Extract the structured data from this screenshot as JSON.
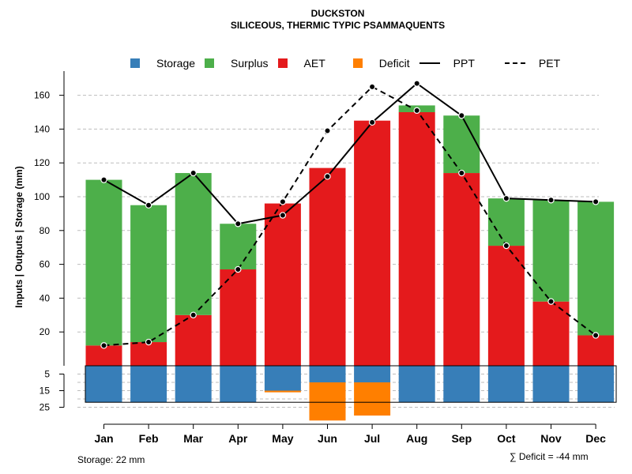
{
  "title": "DUCKSTON",
  "subtitle": "SILICEOUS, THERMIC TYPIC PSAMMAQUENTS",
  "legend": [
    {
      "label": "Storage",
      "type": "box",
      "color": "#377EB8"
    },
    {
      "label": "Surplus",
      "type": "box",
      "color": "#4DAF4A"
    },
    {
      "label": "AET",
      "type": "box",
      "color": "#E41A1C"
    },
    {
      "label": "Deficit",
      "type": "box",
      "color": "#FF7F00"
    },
    {
      "label": "PPT",
      "type": "solid-line",
      "color": "#000000"
    },
    {
      "label": "PET",
      "type": "dashed-line",
      "color": "#000000"
    }
  ],
  "storage_note": "Storage: 22 mm",
  "deficit_note": "∑ Deficit = -44 mm",
  "chart_data": {
    "type": "bar",
    "title": "DUCKSTON",
    "subtitle": "SILICEOUS, THERMIC TYPIC PSAMMAQUENTS",
    "ylabel": "Inputs | Outputs | Storage    (mm)",
    "xlabel": "",
    "categories": [
      "Jan",
      "Feb",
      "Mar",
      "Apr",
      "May",
      "Jun",
      "Jul",
      "Aug",
      "Sep",
      "Oct",
      "Nov",
      "Dec"
    ],
    "ylim_upper": [
      0,
      170
    ],
    "yticks_upper": [
      20,
      40,
      60,
      80,
      100,
      120,
      140,
      160
    ],
    "ylim_lower": [
      0,
      25
    ],
    "yticks_lower": [
      5,
      15,
      25
    ],
    "grid": true,
    "storage_capacity": 22,
    "series": [
      {
        "name": "AET",
        "kind": "bar",
        "color": "#E41A1C",
        "values": [
          12,
          14,
          30,
          57,
          96,
          117,
          145,
          150,
          114,
          71,
          38,
          18
        ]
      },
      {
        "name": "Surplus",
        "kind": "bar",
        "color": "#4DAF4A",
        "values": [
          98,
          81,
          84,
          27,
          0,
          0,
          0,
          4,
          34,
          28,
          60,
          79
        ]
      },
      {
        "name": "Storage",
        "kind": "bar-lower",
        "color": "#377EB8",
        "values": [
          22,
          22,
          22,
          22,
          15,
          10,
          10,
          22,
          22,
          22,
          22,
          22
        ]
      },
      {
        "name": "Deficit",
        "kind": "bar-lower",
        "color": "#FF7F00",
        "values": [
          0,
          0,
          0,
          0,
          1,
          23,
          20,
          0,
          0,
          0,
          0,
          0
        ]
      },
      {
        "name": "PPT",
        "kind": "line",
        "style": "solid",
        "color": "#000000",
        "values": [
          110,
          95,
          114,
          84,
          89,
          112,
          144,
          167,
          148,
          99,
          98,
          97
        ]
      },
      {
        "name": "PET",
        "kind": "line",
        "style": "dashed",
        "color": "#000000",
        "values": [
          12,
          14,
          30,
          57,
          97,
          139,
          165,
          151,
          114,
          71,
          38,
          18
        ]
      }
    ]
  }
}
